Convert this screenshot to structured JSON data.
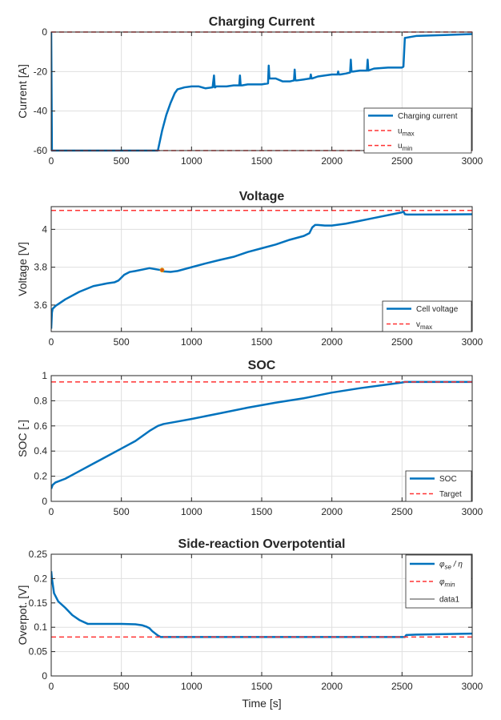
{
  "colors": {
    "series_blue": "#0072BD",
    "limit_red": "#FF3333",
    "marker_orange": "#D95319",
    "axis": "#262626",
    "grid": "#DFDFDF",
    "black": "#000000"
  },
  "chart_data": [
    {
      "type": "line",
      "title": "Charging Current",
      "xlabel": "",
      "ylabel": "Current [A]",
      "xlim": [
        0,
        3000
      ],
      "ylim": [
        -60,
        0
      ],
      "xticks": [
        0,
        500,
        1000,
        1500,
        2000,
        2500,
        3000
      ],
      "yticks": [
        -60,
        -40,
        -20,
        0
      ],
      "grid": true,
      "legend_position": "bottom-right",
      "legend": [
        {
          "label": "Charging current",
          "style": "solid",
          "color": "#0072BD"
        },
        {
          "label": "u",
          "sub": "max",
          "style": "dashed",
          "color": "#FF3333"
        },
        {
          "label": "u",
          "sub": "min",
          "style": "dashed",
          "color": "#FF3333"
        }
      ],
      "series": [
        {
          "name": "Charging current",
          "style": "solid",
          "color": "#0072BD",
          "width": 2.5,
          "x": [
            0,
            5,
            10,
            760,
            790,
            820,
            850,
            880,
            900,
            950,
            1000,
            1050,
            1100,
            1150,
            1160,
            1165,
            1170,
            1175,
            1200,
            1250,
            1300,
            1340,
            1345,
            1350,
            1360,
            1400,
            1450,
            1500,
            1545,
            1550,
            1555,
            1560,
            1600,
            1650,
            1700,
            1730,
            1735,
            1740,
            1750,
            1800,
            1845,
            1850,
            1855,
            1860,
            1900,
            1950,
            2000,
            2040,
            2045,
            2050,
            2060,
            2100,
            2130,
            2135,
            2140,
            2150,
            2200,
            2250,
            2255,
            2260,
            2300,
            2400,
            2500,
            2510,
            2520,
            2600,
            2800,
            3000
          ],
          "y": [
            0,
            -60,
            -60,
            -60,
            -50,
            -42,
            -36,
            -31,
            -29,
            -28,
            -27.5,
            -27.5,
            -28.5,
            -28,
            -22,
            -28,
            -28,
            -27.5,
            -27.5,
            -27.5,
            -27,
            -27,
            -22,
            -27,
            -27,
            -26.5,
            -26.5,
            -26.5,
            -26,
            -17,
            -23.5,
            -23.5,
            -23.5,
            -25,
            -25,
            -24.5,
            -19,
            -24.5,
            -24.5,
            -24,
            -23.5,
            -21.5,
            -23.5,
            -23.5,
            -22.5,
            -22,
            -21.5,
            -21.5,
            -20,
            -21.5,
            -21.5,
            -21,
            -20.5,
            -14,
            -20,
            -20,
            -19.5,
            -19.5,
            -14,
            -19.5,
            -18.5,
            -18,
            -18,
            -17.5,
            -3,
            -2,
            -1.5,
            -1
          ]
        },
        {
          "name": "u max",
          "style": "dashed",
          "color": "#FF3333",
          "width": 1.5,
          "x": [
            0,
            3000
          ],
          "y": [
            0,
            0
          ]
        },
        {
          "name": "u min",
          "style": "dashed",
          "color": "#FF3333",
          "width": 1.5,
          "x": [
            0,
            3000
          ],
          "y": [
            -60,
            -60
          ]
        }
      ]
    },
    {
      "type": "line",
      "title": "Voltage",
      "xlabel": "",
      "ylabel": "Voltage [V]",
      "xlim": [
        0,
        3000
      ],
      "ylim": [
        3.46,
        4.12
      ],
      "xticks": [
        0,
        500,
        1000,
        1500,
        2000,
        2500,
        3000
      ],
      "yticks": [
        3.6,
        3.8,
        4
      ],
      "grid": true,
      "legend_position": "bottom-right",
      "legend": [
        {
          "label": "Cell voltage",
          "style": "solid",
          "color": "#0072BD"
        },
        {
          "label": "v",
          "sub": "max",
          "style": "dashed",
          "color": "#FF3333"
        }
      ],
      "series": [
        {
          "name": "Cell voltage",
          "style": "solid",
          "color": "#0072BD",
          "width": 2.5,
          "x": [
            0,
            5,
            10,
            30,
            60,
            100,
            200,
            300,
            400,
            450,
            480,
            520,
            560,
            600,
            700,
            740,
            780,
            800,
            850,
            900,
            1000,
            1100,
            1200,
            1300,
            1400,
            1500,
            1600,
            1700,
            1800,
            1840,
            1860,
            1880,
            1900,
            1950,
            2000,
            2100,
            2200,
            2300,
            2400,
            2500,
            2510,
            2520,
            2540,
            2600,
            2800,
            3000
          ],
          "y": [
            3.475,
            3.56,
            3.58,
            3.595,
            3.61,
            3.63,
            3.67,
            3.7,
            3.715,
            3.72,
            3.73,
            3.76,
            3.775,
            3.78,
            3.795,
            3.79,
            3.785,
            3.778,
            3.775,
            3.78,
            3.8,
            3.82,
            3.838,
            3.855,
            3.88,
            3.9,
            3.92,
            3.945,
            3.965,
            3.98,
            4.01,
            4.023,
            4.023,
            4.02,
            4.02,
            4.03,
            4.045,
            4.06,
            4.075,
            4.09,
            4.095,
            4.08,
            4.078,
            4.078,
            4.079,
            4.08
          ]
        },
        {
          "name": "v max",
          "style": "dashed",
          "color": "#FF3333",
          "width": 1.5,
          "x": [
            0,
            3000
          ],
          "y": [
            4.1,
            4.1
          ]
        }
      ],
      "markers": [
        {
          "x": 790,
          "y": 3.785,
          "color": "#D95319"
        }
      ]
    },
    {
      "type": "line",
      "title": "SOC",
      "xlabel": "",
      "ylabel": "SOC [-]",
      "xlim": [
        0,
        3000
      ],
      "ylim": [
        0,
        1
      ],
      "xticks": [
        0,
        500,
        1000,
        1500,
        2000,
        2500,
        3000
      ],
      "yticks": [
        0,
        0.2,
        0.4,
        0.6,
        0.8,
        1
      ],
      "grid": true,
      "legend_position": "bottom-right",
      "legend": [
        {
          "label": "SOC",
          "style": "solid",
          "color": "#0072BD"
        },
        {
          "label": "Target",
          "style": "dashed",
          "color": "#FF3333"
        }
      ],
      "series": [
        {
          "name": "SOC",
          "style": "solid",
          "color": "#0072BD",
          "width": 2.5,
          "x": [
            0,
            10,
            30,
            100,
            200,
            300,
            400,
            500,
            600,
            700,
            760,
            800,
            900,
            1000,
            1200,
            1400,
            1600,
            1800,
            2000,
            2200,
            2400,
            2500,
            2520,
            2600,
            3000
          ],
          "y": [
            0.1,
            0.13,
            0.15,
            0.18,
            0.24,
            0.3,
            0.36,
            0.42,
            0.48,
            0.56,
            0.6,
            0.615,
            0.635,
            0.655,
            0.7,
            0.745,
            0.785,
            0.82,
            0.865,
            0.9,
            0.93,
            0.945,
            0.95,
            0.95,
            0.95
          ]
        },
        {
          "name": "Target",
          "style": "dashed",
          "color": "#FF3333",
          "width": 1.5,
          "x": [
            0,
            3000
          ],
          "y": [
            0.95,
            0.95
          ]
        }
      ]
    },
    {
      "type": "line",
      "title": "Side-reaction Overpotential",
      "xlabel": "Time [s]",
      "ylabel": "Overpot. [V]",
      "xlim": [
        0,
        3000
      ],
      "ylim": [
        0,
        0.25
      ],
      "xticks": [
        0,
        500,
        1000,
        1500,
        2000,
        2500,
        3000
      ],
      "yticks": [
        0,
        0.05,
        0.1,
        0.15,
        0.2,
        0.25
      ],
      "grid": true,
      "legend_position": "top-right",
      "legend": [
        {
          "label": "φ",
          "sub": "se",
          "suffix": " / η",
          "style": "solid",
          "color": "#0072BD"
        },
        {
          "label": "φ",
          "sub": "min",
          "style": "dashed",
          "color": "#FF3333"
        },
        {
          "label": "data1",
          "style": "thin",
          "color": "#000000"
        }
      ],
      "series": [
        {
          "name": "φse / η",
          "style": "solid",
          "color": "#0072BD",
          "width": 2.5,
          "x": [
            0,
            5,
            20,
            50,
            100,
            150,
            200,
            260,
            300,
            400,
            500,
            600,
            650,
            680,
            700,
            720,
            760,
            780,
            800,
            1000,
            1500,
            2000,
            2500,
            2520,
            2530,
            2600,
            2800,
            3000
          ],
          "y": [
            0.215,
            0.2,
            0.17,
            0.153,
            0.14,
            0.125,
            0.115,
            0.107,
            0.107,
            0.107,
            0.107,
            0.106,
            0.104,
            0.101,
            0.098,
            0.092,
            0.083,
            0.08,
            0.08,
            0.08,
            0.08,
            0.08,
            0.08,
            0.08,
            0.084,
            0.085,
            0.086,
            0.087
          ]
        },
        {
          "name": "φ min",
          "style": "dashed",
          "color": "#FF3333",
          "width": 1.5,
          "x": [
            0,
            3000
          ],
          "y": [
            0.08,
            0.08
          ]
        }
      ]
    }
  ]
}
